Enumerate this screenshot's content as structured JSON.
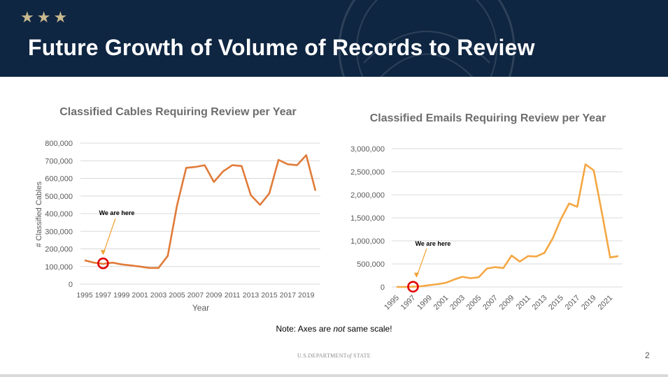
{
  "banner": {
    "stars": "★★★",
    "title": "Future Growth of Volume of Records to Review",
    "background_color": "#0f2642"
  },
  "note": {
    "prefix": "Note: Axes are ",
    "emph": "not",
    "suffix": " same scale!"
  },
  "footer": {
    "agency_pre": "U.S.DEPARTMENT",
    "agency_of": "of",
    "agency_post": " STATE",
    "page_number": "2"
  },
  "chart_data": [
    {
      "type": "line",
      "title": "Classified Cables Requiring Review per Year",
      "xlabel": "Year",
      "ylabel": "# Classified Cables",
      "color": "#e07b39",
      "grid": true,
      "xlim": [
        1995,
        2020
      ],
      "ylim": [
        0,
        800000
      ],
      "yticks": [
        0,
        100000,
        200000,
        300000,
        400000,
        500000,
        600000,
        700000,
        800000
      ],
      "ytick_labels": [
        "0",
        "100,000",
        "200,000",
        "300,000",
        "400,000",
        "500,000",
        "600,000",
        "700,000",
        "800,000"
      ],
      "xticks": [
        1995,
        1997,
        1999,
        2001,
        2003,
        2005,
        2007,
        2009,
        2011,
        2013,
        2015,
        2017,
        2019
      ],
      "xtick_labels": [
        "1995",
        "1997",
        "1999",
        "2001",
        "2003",
        "2005",
        "2007",
        "2009",
        "2011",
        "2013",
        "2015",
        "2017",
        "2019"
      ],
      "x": [
        1995,
        1996,
        1997,
        1998,
        1999,
        2000,
        2001,
        2002,
        2003,
        2004,
        2005,
        2006,
        2007,
        2008,
        2009,
        2010,
        2011,
        2012,
        2013,
        2014,
        2015,
        2016,
        2017,
        2018,
        2019,
        2020
      ],
      "y": [
        135000,
        122000,
        115000,
        122000,
        112000,
        106000,
        100000,
        92000,
        92000,
        160000,
        445000,
        660000,
        665000,
        675000,
        580000,
        640000,
        675000,
        670000,
        505000,
        450000,
        515000,
        705000,
        680000,
        675000,
        732000,
        530000
      ],
      "annotation": {
        "text": "We are here",
        "x": 1997,
        "y": 118000,
        "marker_color": "#e00000"
      }
    },
    {
      "type": "line",
      "title": "Classified Emails Requiring Review per Year",
      "xlabel": "",
      "ylabel": "",
      "color": "#f5a742",
      "grid": true,
      "xlim": [
        1995,
        2022
      ],
      "ylim": [
        0,
        3000000
      ],
      "yticks": [
        0,
        500000,
        1000000,
        1500000,
        2000000,
        2500000,
        3000000
      ],
      "ytick_labels": [
        "0",
        "500,000",
        "1,000,000",
        "1,500,000",
        "2,000,000",
        "2,500,000",
        "3,000,000"
      ],
      "xticks": [
        1995,
        1997,
        1999,
        2001,
        2003,
        2005,
        2007,
        2009,
        2011,
        2013,
        2015,
        2017,
        2019,
        2021
      ],
      "xtick_labels": [
        "1995",
        "1997",
        "1999",
        "2001",
        "2003",
        "2005",
        "2007",
        "2009",
        "2011",
        "2013",
        "2015",
        "2017",
        "2019",
        "2021"
      ],
      "x": [
        1995,
        1996,
        1997,
        1998,
        1999,
        2000,
        2001,
        2002,
        2003,
        2004,
        2005,
        2006,
        2007,
        2008,
        2009,
        2010,
        2011,
        2012,
        2013,
        2014,
        2015,
        2016,
        2017,
        2018,
        2019,
        2020,
        2021,
        2022
      ],
      "y": [
        0,
        0,
        5000,
        15000,
        40000,
        60000,
        90000,
        160000,
        220000,
        190000,
        210000,
        400000,
        430000,
        410000,
        680000,
        550000,
        670000,
        660000,
        740000,
        1050000,
        1470000,
        1810000,
        1740000,
        2660000,
        2530000,
        1610000,
        640000,
        670000
      ],
      "annotation": {
        "text": "We are here",
        "x": 1997,
        "y": 5000,
        "marker_color": "#e00000"
      }
    }
  ]
}
